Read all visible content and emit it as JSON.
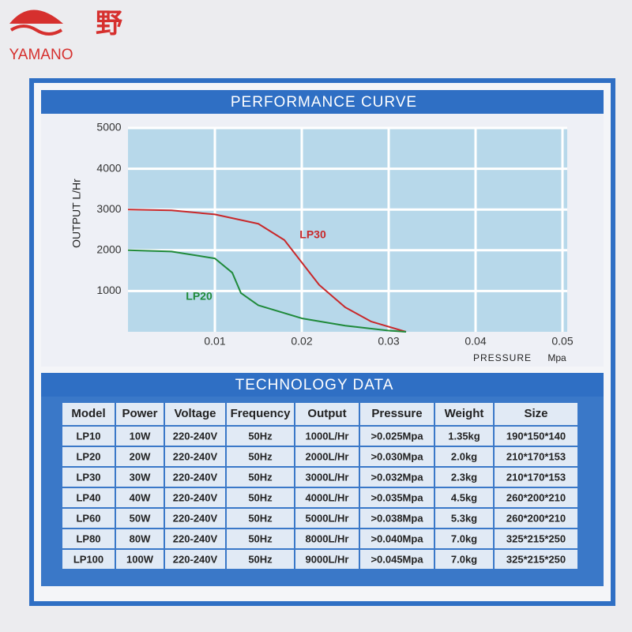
{
  "brand": {
    "name": "YAMANO",
    "char": "野"
  },
  "chart_data": {
    "type": "line",
    "title": "PERFORMANCE CURVE",
    "ylabel": "OUTPUT L/Hr",
    "xlabel": "PRESSURE",
    "xunit": "Mpa",
    "xlim": [
      0,
      0.05
    ],
    "ylim": [
      0,
      5000
    ],
    "xticks": [
      0.01,
      0.02,
      0.03,
      0.04,
      0.05
    ],
    "yticks": [
      1000,
      2000,
      3000,
      4000,
      5000
    ],
    "grid": true,
    "series": [
      {
        "name": "LP30",
        "color": "#c8282a",
        "x": [
          0,
          0.005,
          0.01,
          0.015,
          0.018,
          0.02,
          0.022,
          0.025,
          0.028,
          0.032
        ],
        "values": [
          3000,
          2980,
          2880,
          2650,
          2250,
          1700,
          1150,
          600,
          250,
          0
        ]
      },
      {
        "name": "LP20",
        "color": "#1f8a3a",
        "x": [
          0,
          0.005,
          0.01,
          0.012,
          0.013,
          0.015,
          0.02,
          0.025,
          0.03,
          0.032
        ],
        "values": [
          2000,
          1970,
          1800,
          1450,
          950,
          650,
          330,
          150,
          30,
          0
        ]
      }
    ]
  },
  "table": {
    "title": "TECHNOLOGY DATA",
    "header": [
      "Model",
      "Power",
      "Voltage",
      "Frequency",
      "Output",
      "Pressure",
      "Weight",
      "Size"
    ],
    "rows": [
      [
        "LP10",
        "10W",
        "220-240V",
        "50Hz",
        "1000L/Hr",
        ">0.025Mpa",
        "1.35kg",
        "190*150*140"
      ],
      [
        "LP20",
        "20W",
        "220-240V",
        "50Hz",
        "2000L/Hr",
        ">0.030Mpa",
        "2.0kg",
        "210*170*153"
      ],
      [
        "LP30",
        "30W",
        "220-240V",
        "50Hz",
        "3000L/Hr",
        ">0.032Mpa",
        "2.3kg",
        "210*170*153"
      ],
      [
        "LP40",
        "40W",
        "220-240V",
        "50Hz",
        "4000L/Hr",
        ">0.035Mpa",
        "4.5kg",
        "260*200*210"
      ],
      [
        "LP60",
        "50W",
        "220-240V",
        "50Hz",
        "5000L/Hr",
        ">0.038Mpa",
        "5.3kg",
        "260*200*210"
      ],
      [
        "LP80",
        "80W",
        "220-240V",
        "50Hz",
        "8000L/Hr",
        ">0.040Mpa",
        "7.0kg",
        "325*215*250"
      ],
      [
        "LP100",
        "100W",
        "220-240V",
        "50Hz",
        "9000L/Hr",
        ">0.045Mpa",
        "7.0kg",
        "325*215*250"
      ]
    ]
  }
}
